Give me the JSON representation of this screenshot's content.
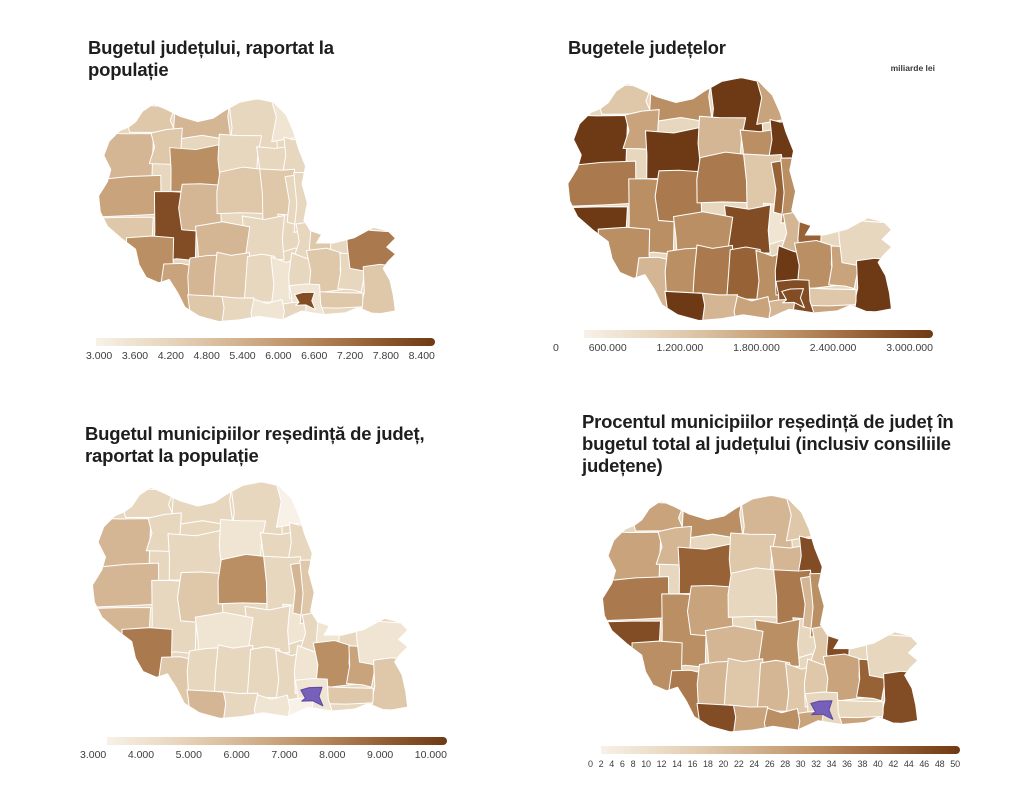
{
  "color_scale": {
    "palette": [
      "#f7f1e8",
      "#f0e4d3",
      "#e8d7bf",
      "#dfc7aa",
      "#d5b694",
      "#c9a37c",
      "#bb8f64",
      "#aa794d",
      "#986237",
      "#824c24",
      "#6e3a15"
    ],
    "highlight_purple": "#7660ba",
    "highlight_purple_stroke": "#5c49a3",
    "county_border": "#ffffff",
    "title_color": "#1e1e1e"
  },
  "panels": [
    {
      "title": "Bugetul județului, raportat la populație",
      "unit_note": ""
    },
    {
      "title": "Bugetele județelor",
      "unit_note": "miliarde lei"
    },
    {
      "title": "Bugetul municipiilor reședință de județ, raportat la populație",
      "unit_note": ""
    },
    {
      "title": "Procentul municipiilor reședință de județ în bugetul total al județului (inclusiv consiliile județene)",
      "unit_note": ""
    }
  ],
  "chart_data": [
    {
      "type": "choropleth",
      "title": "Bugetul județului, raportat la populație",
      "region": "România, județe",
      "legend_tick_labels": [
        "3.000",
        "3.600",
        "4.200",
        "4.800",
        "5.400",
        "6.000",
        "6.600",
        "7.200",
        "7.800",
        "8.400"
      ],
      "value_range": [
        3000,
        8400
      ],
      "county_levels": {
        "satu-mare": 3,
        "maramures": 4,
        "suceava": 2,
        "botosani": 1,
        "bihor": 4,
        "salaj": 3,
        "cluj": 6,
        "bistrita-nasaud": 2,
        "neamt": 2,
        "iasi": 2,
        "arad": 5,
        "timis": 3,
        "hunedoara": 9,
        "alba": 4,
        "mures": 3,
        "harghita": 3,
        "covasna": 2,
        "brasov": 2,
        "sibiu": 4,
        "bacau": 2,
        "vaslui": 2,
        "vrancea": 2,
        "galati": 3,
        "caras-severin": 6,
        "mehedinti": 5,
        "gorj": 4,
        "valcea": 3,
        "arges": 2,
        "dambovita": 1,
        "prahova": 2,
        "buzau": 3,
        "braila": 2,
        "tulcea": 7,
        "constanta": 3,
        "ialomita": 3,
        "calarasi": 2,
        "ilfov": 1,
        "giurgiu": 2,
        "teleorman": 1,
        "olt": 2,
        "dolj": 3,
        "bucuresti": 9
      }
    },
    {
      "type": "choropleth",
      "title": "Bugetele județelor",
      "region": "România, județe",
      "unit_note": "miliarde lei",
      "legend_tick_labels": [
        "0",
        "600.000",
        "1.200.000",
        "1.800.000",
        "2.400.000",
        "3.000.000"
      ],
      "value_range": [
        0,
        3000000
      ],
      "county_levels": {
        "satu-mare": 3,
        "maramures": 6,
        "suceava": 10,
        "botosani": 5,
        "bihor": 10,
        "salaj": 5,
        "cluj": 10,
        "bistrita-nasaud": 4,
        "neamt": 6,
        "iasi": 10,
        "arad": 7,
        "timis": 10,
        "hunedoara": 6,
        "alba": 7,
        "mures": 7,
        "harghita": 3,
        "covasna": 1,
        "brasov": 9,
        "sibiu": 6,
        "bacau": 8,
        "vaslui": 6,
        "vrancea": 4,
        "galati": 8,
        "caras-severin": 6,
        "mehedinti": 4,
        "gorj": 6,
        "valcea": 7,
        "arges": 8,
        "dambovita": 6,
        "prahova": 10,
        "buzau": 6,
        "braila": 5,
        "tulcea": 2,
        "constanta": 10,
        "ialomita": 3,
        "calarasi": 5,
        "ilfov": 9,
        "giurgiu": 4,
        "teleorman": 5,
        "olt": 4,
        "dolj": 10,
        "bucuresti": 9
      }
    },
    {
      "type": "choropleth",
      "title": "Bugetul municipiilor reședință de județ, raportat la populație",
      "region": "România, județe",
      "legend_tick_labels": [
        "3.000",
        "4.000",
        "5.000",
        "6.000",
        "7.000",
        "8.000",
        "9.000",
        "10.000"
      ],
      "value_range": [
        3000,
        10000
      ],
      "county_levels": {
        "satu-mare": 2,
        "maramures": 2,
        "suceava": 2,
        "botosani": 0,
        "bihor": 4,
        "salaj": 2,
        "cluj": 2,
        "bistrita-nasaud": 1,
        "neamt": 2,
        "iasi": 2,
        "arad": 4,
        "timis": 4,
        "hunedoara": 2,
        "alba": 3,
        "mures": 6,
        "harghita": 2,
        "covasna": 1,
        "brasov": 2,
        "sibiu": 1,
        "bacau": 4,
        "vaslui": 3,
        "vrancea": 2,
        "galati": 1,
        "caras-severin": 7,
        "mehedinti": 3,
        "gorj": 2,
        "valcea": 2,
        "arges": 2,
        "dambovita": 2,
        "prahova": 1,
        "buzau": 6,
        "braila": 5,
        "tulcea": 1,
        "constanta": 3,
        "ialomita": 3,
        "calarasi": 2,
        "ilfov": 1,
        "giurgiu": 0,
        "teleorman": 1,
        "olt": 2,
        "dolj": 4,
        "bucuresti": "#7660ba"
      }
    },
    {
      "type": "choropleth",
      "title": "Procentul municipiilor reședință de județ în bugetul total al județului (inclusiv consiliile județene)",
      "region": "România, județe",
      "legend_tick_labels": [
        "0",
        "2",
        "4",
        "6",
        "8",
        "10",
        "12",
        "14",
        "16",
        "18",
        "20",
        "22",
        "24",
        "26",
        "28",
        "30",
        "32",
        "34",
        "36",
        "38",
        "40",
        "42",
        "44",
        "46",
        "48",
        "50"
      ],
      "value_range": [
        0,
        50
      ],
      "county_levels": {
        "satu-mare": 5,
        "maramures": 6,
        "suceava": 4,
        "botosani": 3,
        "bihor": 5,
        "salaj": 4,
        "cluj": 8,
        "bistrita-nasaud": 3,
        "neamt": 4,
        "iasi": 9,
        "arad": 7,
        "timis": 9,
        "hunedoara": 6,
        "alba": 5,
        "mures": 2,
        "harghita": 7,
        "covasna": 2,
        "brasov": 6,
        "sibiu": 4,
        "bacau": 4,
        "vaslui": 6,
        "vrancea": 3,
        "galati": 9,
        "caras-severin": 6,
        "mehedinti": 7,
        "gorj": 4,
        "valcea": 3,
        "arges": 4,
        "dambovita": 3,
        "prahova": 3,
        "buzau": 5,
        "braila": 8,
        "tulcea": 2,
        "constanta": 9,
        "ialomita": 2,
        "calarasi": 5,
        "ilfov": 2,
        "giurgiu": 5,
        "teleorman": 6,
        "olt": 5,
        "dolj": 9,
        "bucuresti": "#7660ba"
      }
    }
  ]
}
